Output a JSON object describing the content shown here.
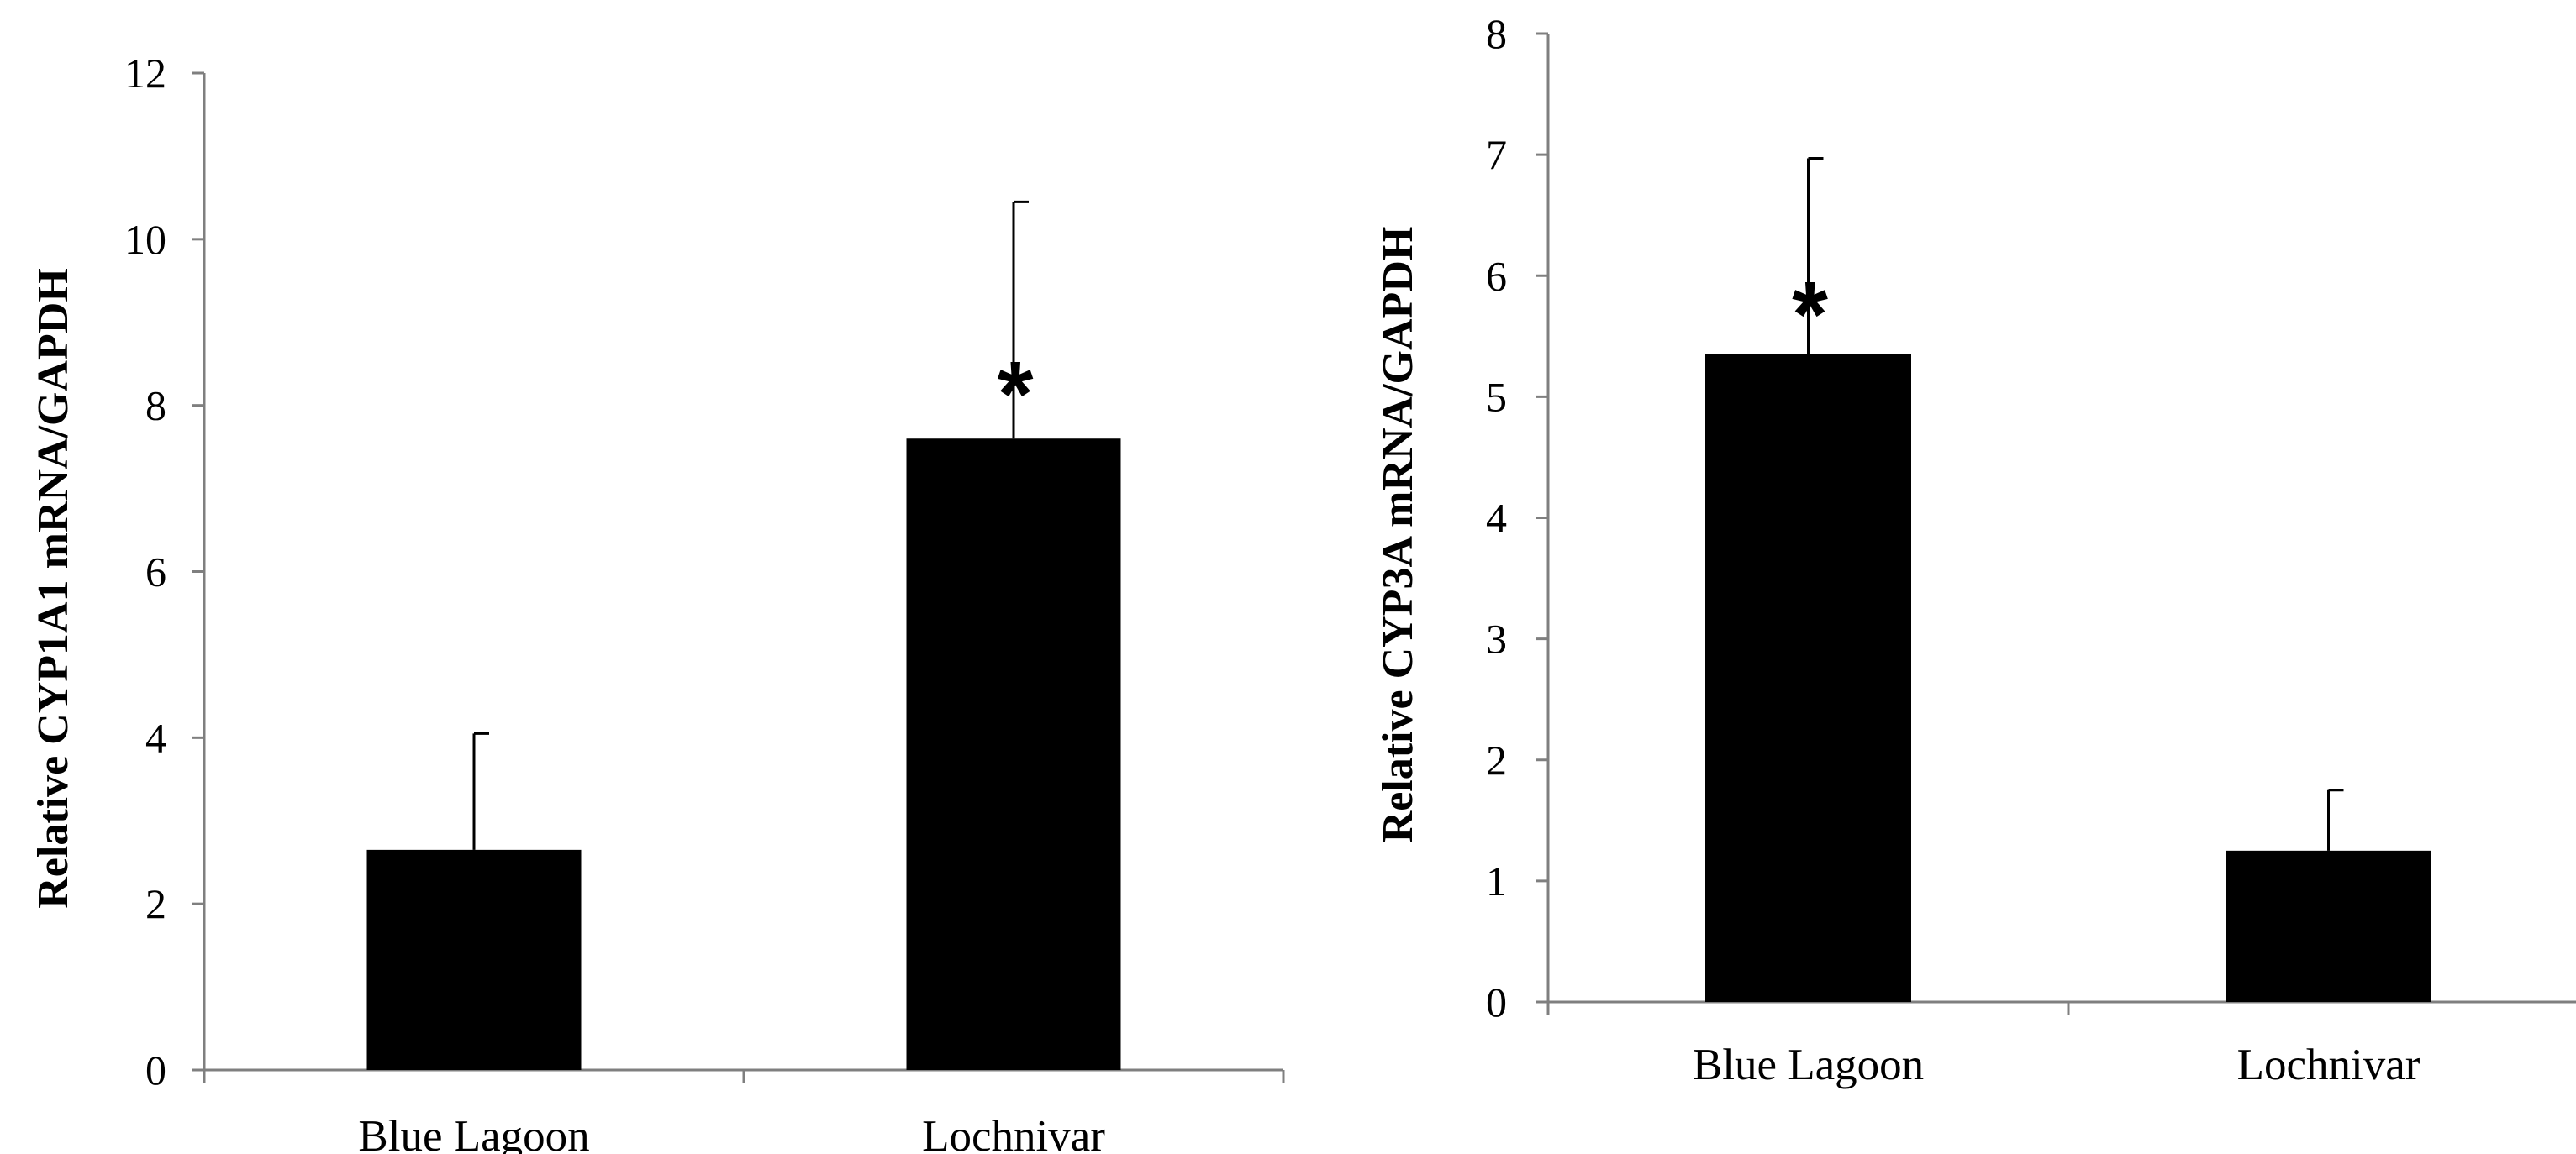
{
  "chart_data": [
    {
      "type": "bar",
      "categories": [
        "Blue Lagoon",
        "Lochnivar"
      ],
      "values": [
        2.65,
        7.6
      ],
      "errors": [
        1.4,
        2.85
      ],
      "significance": [
        "",
        "*"
      ],
      "ylabel": "Relative CYP1A1 mRNA/GAPDH",
      "xlabel": "",
      "ylim": [
        0,
        12
      ],
      "yticks": [
        0,
        2,
        4,
        6,
        8,
        10,
        12
      ],
      "grid": false,
      "bar_color": "#000000"
    },
    {
      "type": "bar",
      "categories": [
        "Blue Lagoon",
        "Lochnivar"
      ],
      "values": [
        5.35,
        1.25
      ],
      "errors": [
        1.62,
        0.5
      ],
      "significance": [
        "*",
        ""
      ],
      "ylabel": "Relative CYP3A mRNA/GAPDH",
      "xlabel": "",
      "ylim": [
        0,
        8
      ],
      "yticks": [
        0,
        1,
        2,
        3,
        4,
        5,
        6,
        7,
        8
      ],
      "grid": false,
      "bar_color": "#000000"
    }
  ]
}
